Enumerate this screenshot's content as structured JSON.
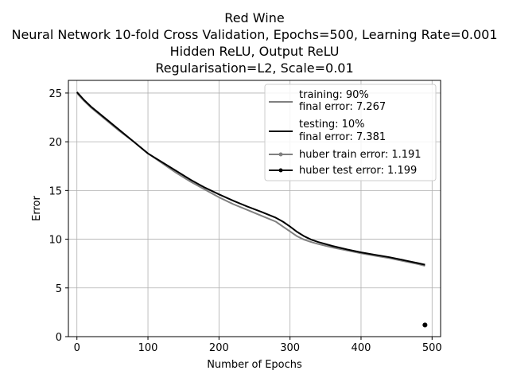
{
  "chart_data": {
    "type": "line",
    "title_lines": [
      "Red Wine",
      "Neural Network 10-fold Cross Validation, Epochs=500, Learning Rate=0.001",
      "Hidden ReLU, Output ReLU",
      "Regularisation=L2, Scale=0.01"
    ],
    "xlabel": "Number of Epochs",
    "ylabel": "Error",
    "xlim": [
      -12,
      512
    ],
    "ylim": [
      0,
      26.3
    ],
    "xticks": [
      0,
      100,
      200,
      300,
      400,
      500
    ],
    "yticks": [
      0,
      5,
      10,
      15,
      20,
      25
    ],
    "grid": true,
    "legend_position": "upper right",
    "legend": [
      {
        "line1": "training: 90%",
        "line2": "final error: 7.267"
      },
      {
        "line1": "testing: 10%",
        "line2": "final error: 7.381"
      },
      {
        "line1": "huber train error: 1.191"
      },
      {
        "line1": "huber test error: 1.199"
      }
    ],
    "series": [
      {
        "name": "training: 90%",
        "color": "#808080",
        "x": [
          0,
          10,
          20,
          40,
          60,
          80,
          100,
          120,
          140,
          160,
          180,
          200,
          220,
          240,
          260,
          280,
          290,
          300,
          310,
          320,
          330,
          340,
          360,
          380,
          400,
          420,
          440,
          460,
          480,
          490
        ],
        "y": [
          25.0,
          24.2,
          23.5,
          22.3,
          21.1,
          20.0,
          18.8,
          17.8,
          16.8,
          15.9,
          15.1,
          14.3,
          13.6,
          13.0,
          12.4,
          11.8,
          11.3,
          10.8,
          10.3,
          9.95,
          9.7,
          9.5,
          9.15,
          8.85,
          8.55,
          8.3,
          8.05,
          7.75,
          7.45,
          7.27
        ]
      },
      {
        "name": "testing: 10%",
        "color": "#000000",
        "x": [
          0,
          10,
          20,
          40,
          60,
          80,
          100,
          120,
          140,
          160,
          180,
          200,
          220,
          240,
          260,
          280,
          290,
          300,
          310,
          320,
          330,
          340,
          360,
          380,
          400,
          420,
          440,
          460,
          480,
          490
        ],
        "y": [
          25.1,
          24.3,
          23.6,
          22.4,
          21.2,
          20.0,
          18.8,
          17.9,
          17.0,
          16.1,
          15.3,
          14.6,
          13.95,
          13.35,
          12.8,
          12.2,
          11.8,
          11.3,
          10.75,
          10.3,
          9.95,
          9.7,
          9.3,
          8.95,
          8.65,
          8.4,
          8.15,
          7.85,
          7.55,
          7.38
        ]
      }
    ],
    "huber_points": [
      {
        "name": "huber train error: 1.191",
        "color": "#808080",
        "x": 490,
        "y": 1.191
      },
      {
        "name": "huber test error: 1.199",
        "color": "#000000",
        "x": 490,
        "y": 1.199
      }
    ]
  }
}
